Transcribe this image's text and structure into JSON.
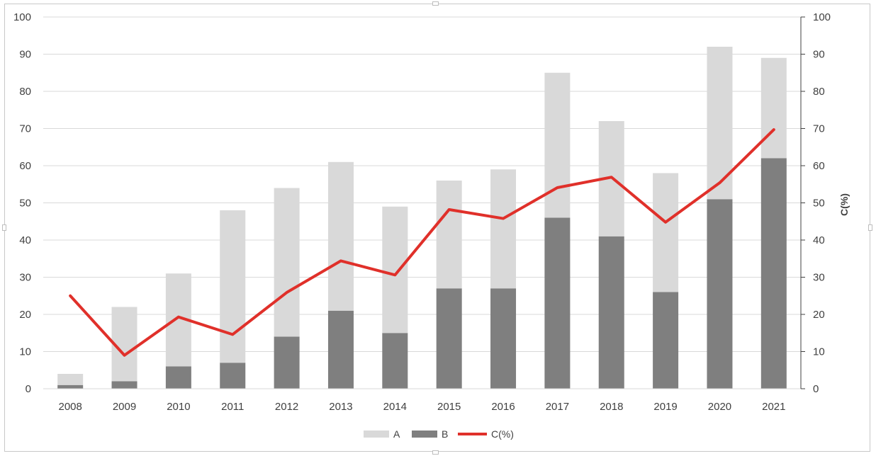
{
  "chart_data": {
    "type": "bar",
    "stacked": true,
    "categories": [
      "2008",
      "2009",
      "2010",
      "2011",
      "2012",
      "2013",
      "2014",
      "2015",
      "2016",
      "2017",
      "2018",
      "2019",
      "2020",
      "2021"
    ],
    "series": [
      {
        "name": "A",
        "kind": "bar",
        "color": "#d9d9d9",
        "values": [
          3,
          20,
          25,
          41,
          40,
          40,
          34,
          29,
          32,
          39,
          31,
          32,
          41,
          27
        ]
      },
      {
        "name": "B",
        "kind": "bar",
        "color": "#7f7f7f",
        "values": [
          1,
          2,
          6,
          7,
          14,
          21,
          15,
          27,
          27,
          46,
          41,
          26,
          51,
          62
        ]
      },
      {
        "name": "C(%)",
        "kind": "line",
        "axis": "right",
        "color": "#e0302a",
        "values": [
          25,
          9,
          19.3,
          14.6,
          25.9,
          34.4,
          30.6,
          48.2,
          45.8,
          54.1,
          56.9,
          44.8,
          55.4,
          69.7
        ]
      }
    ],
    "left_axis": {
      "ylim": [
        0,
        100
      ],
      "ticks": [
        "0",
        "10",
        "20",
        "30",
        "40",
        "50",
        "60",
        "70",
        "80",
        "90",
        "100"
      ]
    },
    "right_axis": {
      "label": "C(%)",
      "ylim": [
        0,
        100
      ],
      "ticks": [
        "0",
        "10",
        "20",
        "30",
        "40",
        "50",
        "60",
        "70",
        "80",
        "90",
        "100"
      ]
    },
    "grid": true,
    "legend": {
      "position": "bottom",
      "entries": [
        "A",
        "B",
        "C(%)"
      ]
    }
  }
}
